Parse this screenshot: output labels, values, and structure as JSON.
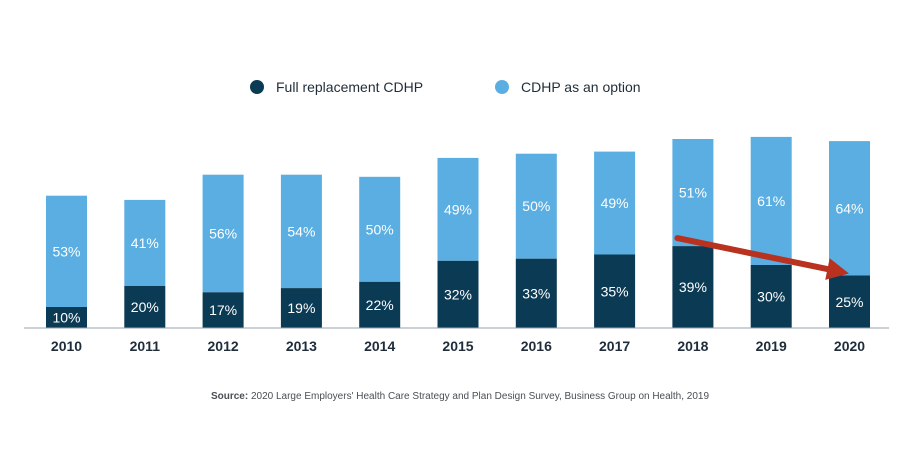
{
  "colors": {
    "full_replacement": "#0b3a54",
    "option": "#5aaee1",
    "arrow": "#b8321f",
    "axis": "#9aa3ab"
  },
  "legend": [
    {
      "name": "Full replacement CDHP",
      "color_key": "full_replacement"
    },
    {
      "name": "CDHP as an option",
      "color_key": "option"
    }
  ],
  "chart_data": {
    "type": "bar",
    "stacked": true,
    "categories": [
      "2010",
      "2011",
      "2012",
      "2013",
      "2014",
      "2015",
      "2016",
      "2017",
      "2018",
      "2019",
      "2020"
    ],
    "series": [
      {
        "name": "Full replacement CDHP",
        "values": [
          10,
          20,
          17,
          19,
          22,
          32,
          33,
          35,
          39,
          30,
          25
        ]
      },
      {
        "name": "CDHP as an option",
        "values": [
          53,
          41,
          56,
          54,
          50,
          49,
          50,
          49,
          51,
          61,
          64
        ]
      }
    ],
    "value_suffix": "%",
    "ylim": [
      0,
      100
    ],
    "grid": false,
    "legend_position": "top",
    "annotation": {
      "type": "arrow",
      "from_category": "2018",
      "to_category": "2020"
    }
  },
  "source": {
    "label": "Source:",
    "text": "2020 Large Employers' Health Care Strategy and Plan Design Survey, Business Group on Health, 2019"
  }
}
